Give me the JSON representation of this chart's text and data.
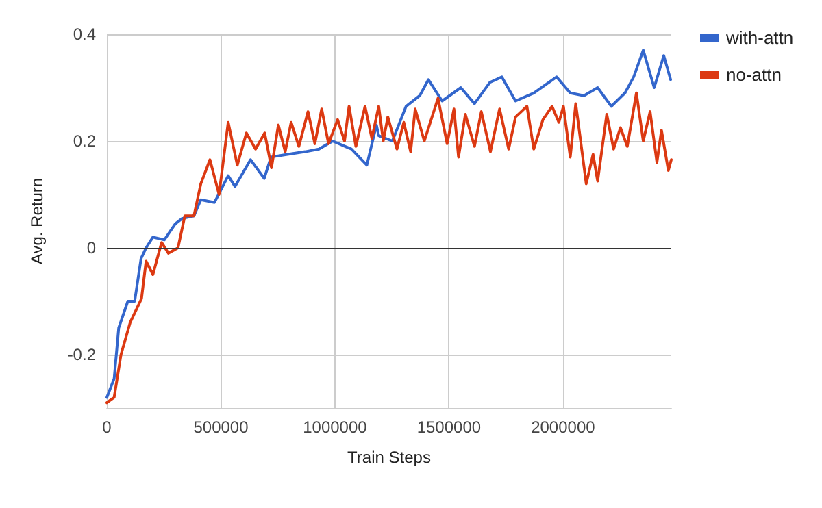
{
  "chart_data": {
    "type": "line",
    "xlabel": "Train Steps",
    "ylabel": "Avg. Return",
    "xlim": [
      0,
      2475000
    ],
    "xticks": [
      0,
      500000,
      1000000,
      1500000,
      2000000
    ],
    "ylim": [
      -0.3,
      0.4
    ],
    "yticks": [
      -0.2,
      0,
      0.2,
      0.4
    ],
    "grid": true,
    "legend": "top right",
    "marker": "none",
    "line_style": "solid",
    "ref_lines": [
      {
        "axis": "y",
        "value": 0,
        "color": "#333333"
      }
    ],
    "series": [
      {
        "name": "with-attn",
        "color": "#3366cc",
        "x": [
          0,
          32000,
          52000,
          92000,
          122000,
          150000,
          172000,
          202000,
          252000,
          300000,
          330000,
          382000,
          412000,
          472000,
          532000,
          562000,
          630000,
          690000,
          720000,
          792000,
          870000,
          930000,
          990000,
          1072000,
          1140000,
          1182000,
          1192000,
          1252000,
          1312000,
          1372000,
          1410000,
          1470000,
          1552000,
          1612000,
          1680000,
          1732000,
          1792000,
          1872000,
          1972000,
          2032000,
          2092000,
          2152000,
          2212000,
          2272000,
          2310000,
          2352000,
          2400000,
          2442000,
          2472000
        ],
        "values": [
          -0.28,
          -0.245,
          -0.15,
          -0.1,
          -0.1,
          -0.02,
          0,
          0.02,
          0.015,
          0.045,
          0.055,
          0.06,
          0.09,
          0.085,
          0.135,
          0.115,
          0.165,
          0.13,
          0.17,
          0.175,
          0.18,
          0.185,
          0.2,
          0.185,
          0.155,
          0.23,
          0.21,
          0.2,
          0.265,
          0.285,
          0.315,
          0.275,
          0.3,
          0.27,
          0.31,
          0.32,
          0.275,
          0.29,
          0.32,
          0.29,
          0.285,
          0.3,
          0.265,
          0.29,
          0.32,
          0.37,
          0.3,
          0.36,
          0.315
        ]
      },
      {
        "name": "no-attn",
        "color": "#dc3912",
        "x": [
          0,
          32000,
          62000,
          102000,
          152000,
          172000,
          202000,
          240000,
          270000,
          312000,
          342000,
          382000,
          412000,
          452000,
          492000,
          532000,
          572000,
          612000,
          652000,
          692000,
          722000,
          752000,
          782000,
          808000,
          842000,
          882000,
          912000,
          942000,
          972000,
          1012000,
          1042000,
          1062000,
          1092000,
          1132000,
          1162000,
          1192000,
          1212000,
          1232000,
          1272000,
          1302000,
          1332000,
          1352000,
          1392000,
          1452000,
          1492000,
          1522000,
          1542000,
          1572000,
          1612000,
          1642000,
          1682000,
          1722000,
          1762000,
          1792000,
          1842000,
          1872000,
          1912000,
          1952000,
          1982000,
          2002000,
          2032000,
          2056000,
          2102000,
          2132000,
          2152000,
          2192000,
          2222000,
          2252000,
          2282000,
          2322000,
          2352000,
          2382000,
          2412000,
          2432000,
          2462000,
          2475000
        ],
        "values": [
          -0.29,
          -0.28,
          -0.2,
          -0.14,
          -0.095,
          -0.025,
          -0.05,
          0.01,
          -0.01,
          0,
          0.06,
          0.06,
          0.12,
          0.165,
          0.1,
          0.235,
          0.155,
          0.215,
          0.185,
          0.215,
          0.15,
          0.23,
          0.18,
          0.235,
          0.19,
          0.255,
          0.195,
          0.26,
          0.195,
          0.24,
          0.2,
          0.265,
          0.19,
          0.265,
          0.205,
          0.265,
          0.2,
          0.245,
          0.185,
          0.235,
          0.18,
          0.26,
          0.2,
          0.28,
          0.195,
          0.26,
          0.17,
          0.25,
          0.19,
          0.255,
          0.18,
          0.26,
          0.185,
          0.245,
          0.265,
          0.185,
          0.24,
          0.265,
          0.235,
          0.265,
          0.17,
          0.27,
          0.12,
          0.175,
          0.125,
          0.25,
          0.185,
          0.225,
          0.19,
          0.29,
          0.2,
          0.255,
          0.16,
          0.22,
          0.145,
          0.165
        ]
      }
    ]
  }
}
